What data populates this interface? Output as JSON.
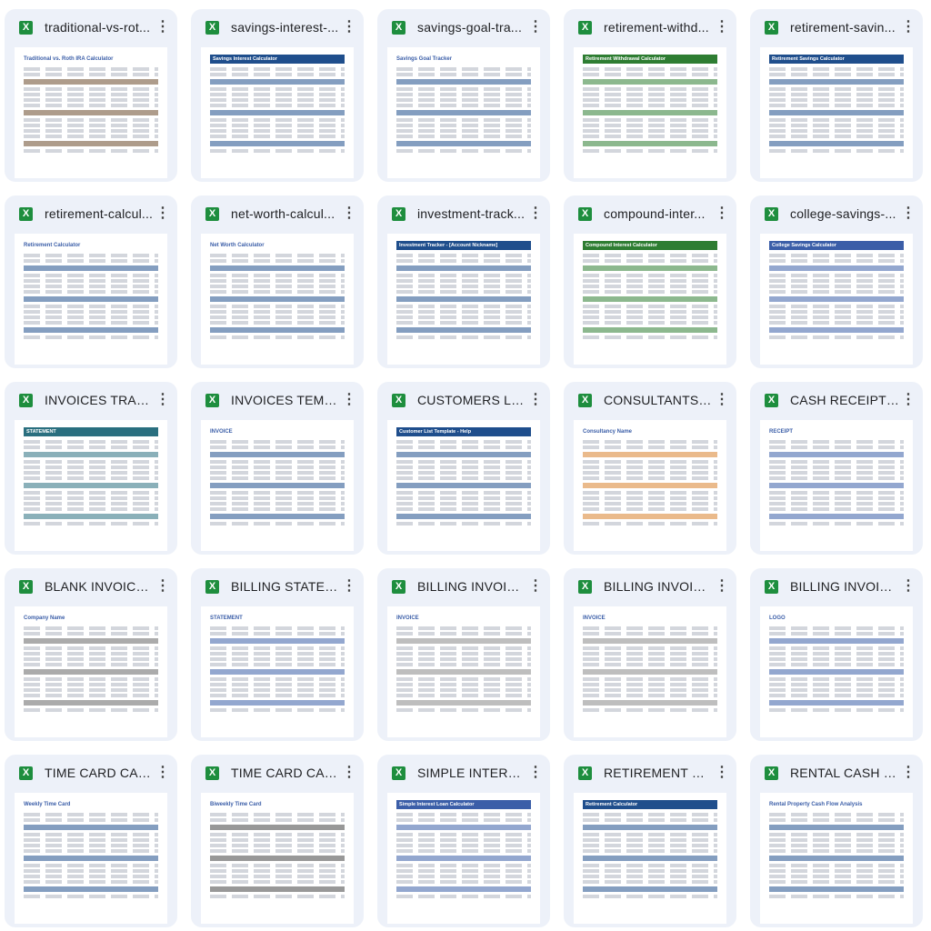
{
  "files": [
    {
      "name": "traditional-vs-rot...",
      "heading": "Traditional vs. Roth IRA Calculator",
      "accent": "#6b4a2b",
      "plain": true
    },
    {
      "name": "savings-interest-...",
      "heading": "Savings Interest Calculator",
      "accent": "#1f4e8c",
      "plain": false
    },
    {
      "name": "savings-goal-tra...",
      "heading": "Savings Goal Tracker",
      "accent": "#1f4e8c",
      "plain": true
    },
    {
      "name": "retirement-withd...",
      "heading": "Retirement Withdrawal Calculator",
      "accent": "#2e7d32",
      "plain": false
    },
    {
      "name": "retirement-savin...",
      "heading": "Retirement Savings Calculator",
      "accent": "#1f4e8c",
      "plain": false
    },
    {
      "name": "retirement-calcul...",
      "heading": "Retirement Calculator",
      "accent": "#1f4e8c",
      "plain": true
    },
    {
      "name": "net-worth-calcul...",
      "heading": "Net Worth Calculator",
      "accent": "#1f4e8c",
      "plain": true
    },
    {
      "name": "investment-track...",
      "heading": "Investment Tracker - [Account Nickname]",
      "accent": "#1f4e8c",
      "plain": false
    },
    {
      "name": "compound-inter...",
      "heading": "Compound Interest Calculator",
      "accent": "#2e7d32",
      "plain": false
    },
    {
      "name": "college-savings-...",
      "heading": "College Savings Calculator",
      "accent": "#3b5ea8",
      "plain": false
    },
    {
      "name": "INVOICES TRACK...",
      "heading": "STATEMENT",
      "accent": "#2a6f7f",
      "plain": false
    },
    {
      "name": "INVOICES TEMPL...",
      "heading": "INVOICE",
      "accent": "#1f4e8c",
      "plain": true
    },
    {
      "name": "CUSTOMERS LIS...",
      "heading": "Customer List Template - Help",
      "accent": "#1f4e8c",
      "plain": false
    },
    {
      "name": "CONSULTANTS I...",
      "heading": "Consultancy Name",
      "accent": "#d9822b",
      "plain": true
    },
    {
      "name": "CASH RECEIPTS....",
      "heading": "RECEIPT",
      "accent": "#3b5ea8",
      "plain": true
    },
    {
      "name": "BLANK INVOICES...",
      "heading": "Company Name",
      "accent": "#666666",
      "plain": true
    },
    {
      "name": "BILLING STATEM...",
      "heading": "STATEMENT",
      "accent": "#3b5ea8",
      "plain": true
    },
    {
      "name": "BILLING INVOICE...",
      "heading": "INVOICE",
      "accent": "#888888",
      "plain": true
    },
    {
      "name": "BILLING INVOICE...",
      "heading": "INVOICE",
      "accent": "#888888",
      "plain": true
    },
    {
      "name": "BILLING INVOICE...",
      "heading": "LOGO",
      "accent": "#3b5ea8",
      "plain": true
    },
    {
      "name": "TIME CARD CAL...",
      "heading": "Weekly Time Card",
      "accent": "#1f4e8c",
      "plain": true
    },
    {
      "name": "TIME CARD CAL...",
      "heading": "Biweekly Time Card",
      "accent": "#444444",
      "plain": true
    },
    {
      "name": "SIMPLE INTERES...",
      "heading": "Simple Interest Loan Calculator",
      "accent": "#3b5ea8",
      "plain": false
    },
    {
      "name": "RETIREMENT CA...",
      "heading": "Retirement Calculator",
      "accent": "#1f4e8c",
      "plain": false
    },
    {
      "name": "RENTAL CASH FL...",
      "heading": "Rental Property Cash Flow Analysis",
      "accent": "#1f4e8c",
      "plain": true
    }
  ],
  "file_icon_label": "X",
  "more_icon": "⋮"
}
